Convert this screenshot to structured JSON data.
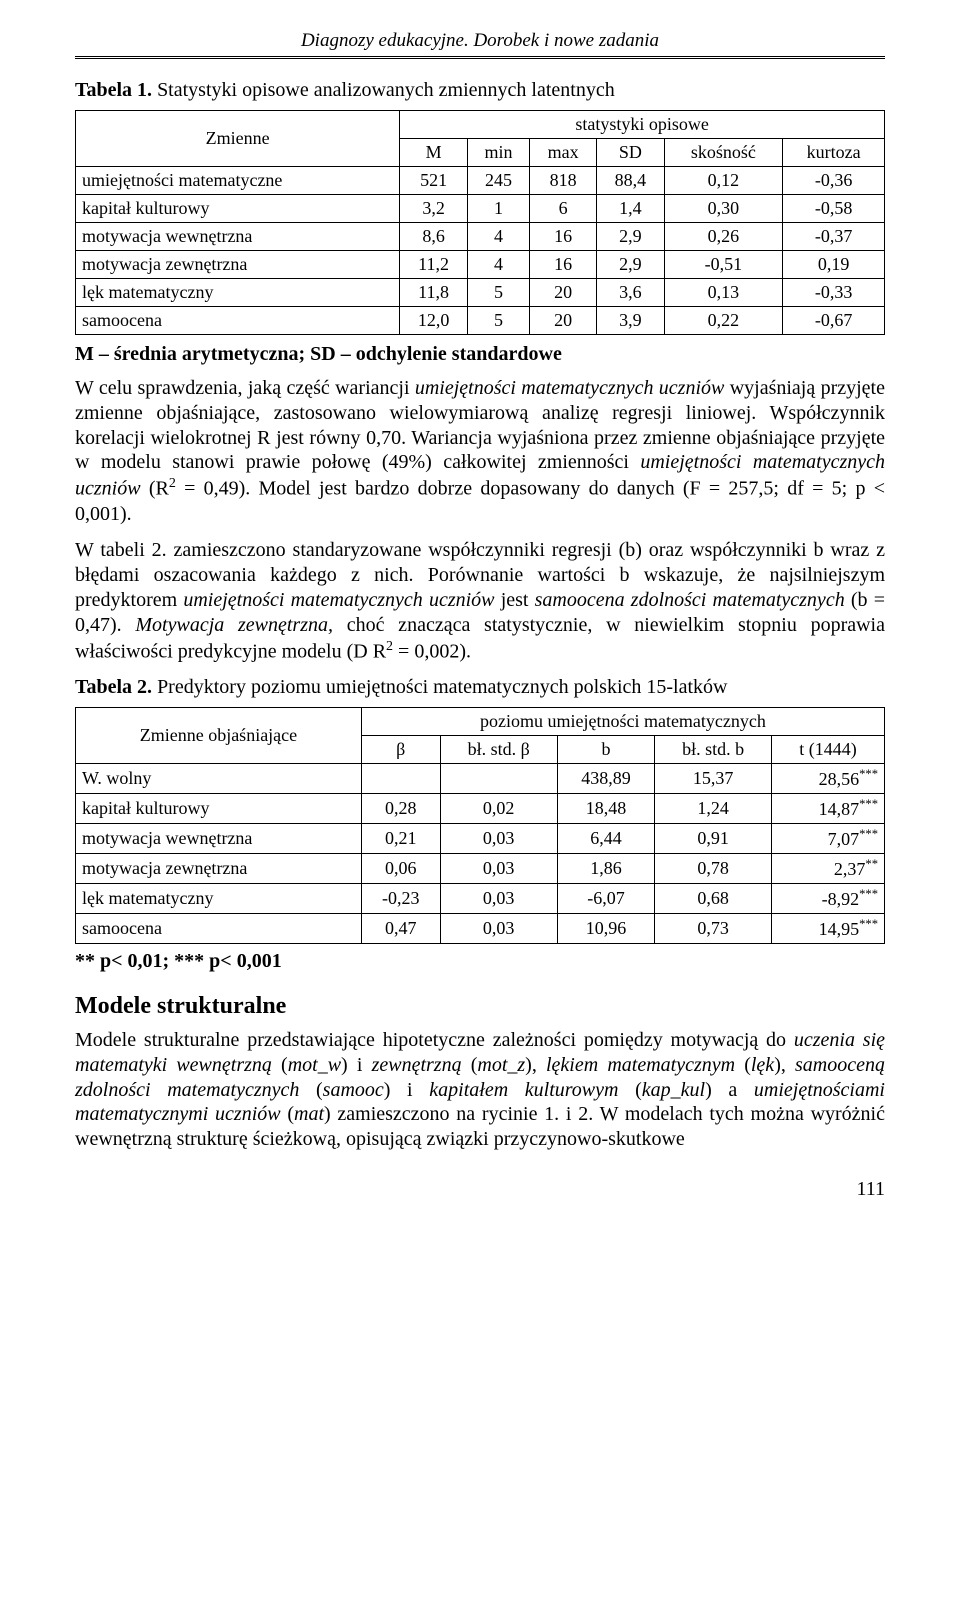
{
  "runningHead": "Diagnozy edukacyjne. Dorobek i nowe zadania",
  "table1": {
    "captionPrefix": "Tabela 1.",
    "captionText": "Statystyki opisowe analizowanych zmiennych latentnych",
    "colgroupLabel": "statystyki opisowe",
    "rowHeader": "Zmienne",
    "columns": [
      "M",
      "min",
      "max",
      "SD",
      "skośność",
      "kurtoza"
    ],
    "rows": [
      {
        "label": "umiejętności matematyczne",
        "vals": [
          "521",
          "245",
          "818",
          "88,4",
          "0,12",
          "-0,36"
        ]
      },
      {
        "label": "kapitał kulturowy",
        "vals": [
          "3,2",
          "1",
          "6",
          "1,4",
          "0,30",
          "-0,58"
        ]
      },
      {
        "label": "motywacja wewnętrzna",
        "vals": [
          "8,6",
          "4",
          "16",
          "2,9",
          "0,26",
          "-0,37"
        ]
      },
      {
        "label": "motywacja zewnętrzna",
        "vals": [
          "11,2",
          "4",
          "16",
          "2,9",
          "-0,51",
          "0,19"
        ]
      },
      {
        "label": "lęk matematyczny",
        "vals": [
          "11,8",
          "5",
          "20",
          "3,6",
          "0,13",
          "-0,33"
        ]
      },
      {
        "label": "samoocena",
        "vals": [
          "12,0",
          "5",
          "20",
          "3,9",
          "0,22",
          "-0,67"
        ]
      }
    ],
    "note": "M – średnia arytmetyczna; SD – odchylenie standardowe"
  },
  "para1_a": "W celu sprawdzenia, jaką część wariancji ",
  "para1_i1": "umiejętności matematycznych uczniów",
  "para1_b": " wyjaśniają przyjęte zmienne objaśniające, zastosowano wielowymiarową analizę regresji liniowej. Współczynnik korelacji wielokrotnej R jest równy 0,70. Wariancja wyjaśniona przez zmienne objaśniające przyjęte w modelu stanowi prawie połowę (49%) całkowitej zmienności ",
  "para1_i2": "umiejętności matematycznych uczniów",
  "para1_c": " (R",
  "para1_sup": "2",
  "para1_d": " = 0,49). Model jest bardzo dobrze dopasowany do danych (F = 257,5; df = 5; p < 0,001).",
  "para2_a": "W tabeli 2. zamieszczono standaryzowane współczynniki regresji (b) oraz współczynniki b wraz z błędami oszacowania każdego z nich. Porównanie wartości b wskazuje, że najsilniejszym predyktorem ",
  "para2_i1": "umiejętności matematycznych uczniów",
  "para2_b": " jest ",
  "para2_i2": "samoocena zdolności matematycznych",
  "para2_c": " (b = 0,47). ",
  "para2_i3": "Motywacja zewnętrzna,",
  "para2_d": " choć znacząca statystycznie, w niewielkim stopniu poprawia właściwości predykcyjne modelu (D R",
  "para2_sup": "2",
  "para2_e": " = 0,002).",
  "table2": {
    "captionPrefix": "Tabela 2.",
    "captionText": "Predyktory poziomu umiejętności matematycznych polskich 15-latków",
    "rowHeader": "Zmienne objaśniające",
    "colgroupLabel": "poziomu umiejętności matematycznych",
    "columns": [
      "β",
      "bł. std. β",
      "b",
      "bł. std. b",
      "t (1444)"
    ],
    "rows": [
      {
        "label": "W. wolny",
        "vals": [
          "",
          "",
          "438,89",
          "15,37",
          "28,56"
        ],
        "stars": "***"
      },
      {
        "label": "kapitał kulturowy",
        "vals": [
          "0,28",
          "0,02",
          "18,48",
          "1,24",
          "14,87"
        ],
        "stars": "***"
      },
      {
        "label": "motywacja wewnętrzna",
        "vals": [
          "0,21",
          "0,03",
          "6,44",
          "0,91",
          "7,07"
        ],
        "stars": "***"
      },
      {
        "label": "motywacja zewnętrzna",
        "vals": [
          "0,06",
          "0,03",
          "1,86",
          "0,78",
          "2,37"
        ],
        "stars": "**"
      },
      {
        "label": "lęk matematyczny",
        "vals": [
          "-0,23",
          "0,03",
          "-6,07",
          "0,68",
          "-8,92"
        ],
        "stars": "***"
      },
      {
        "label": "samoocena",
        "vals": [
          "0,47",
          "0,03",
          "10,96",
          "0,73",
          "14,95"
        ],
        "stars": "***"
      }
    ],
    "footnote": "** p< 0,01; *** p< 0,001"
  },
  "sectionHeading": "Modele strukturalne",
  "para3_a": "Modele strukturalne przedstawiające hipotetyczne zależności pomiędzy motywacją do ",
  "para3_i1": "uczenia się matematyki wewnętrzną",
  "para3_b": " (",
  "para3_i2": "mot_w",
  "para3_c": ") i ",
  "para3_i3": "zewnętrzną",
  "para3_d": " (",
  "para3_i4": "mot_z",
  "para3_e": "), ",
  "para3_i5": "lękiem matematycznym",
  "para3_f": " (",
  "para3_i6": "lęk",
  "para3_g": "), ",
  "para3_i7": "samooceną zdolności matematycznych",
  "para3_h": " (",
  "para3_i8": "samooc",
  "para3_j": ") i ",
  "para3_i9": "kapitałem kulturowym",
  "para3_k": " (",
  "para3_i10": "kap_kul",
  "para3_l": ") a ",
  "para3_i11": "umiejętnościami matematycznymi uczniów",
  "para3_m": " (",
  "para3_i12": "mat",
  "para3_n": ") zamieszczono na rycinie 1. i 2. W modelach tych można wyróżnić wewnętrzną strukturę ścieżkową, opisującą związki przyczynowo-skutkowe",
  "pageNumber": "111",
  "style": {
    "pageBackground": "#ffffff",
    "textColor": "#000000",
    "tableBorderColor": "#000000",
    "bodyFontSizePt": 15,
    "headingFontSizePt": 18
  }
}
